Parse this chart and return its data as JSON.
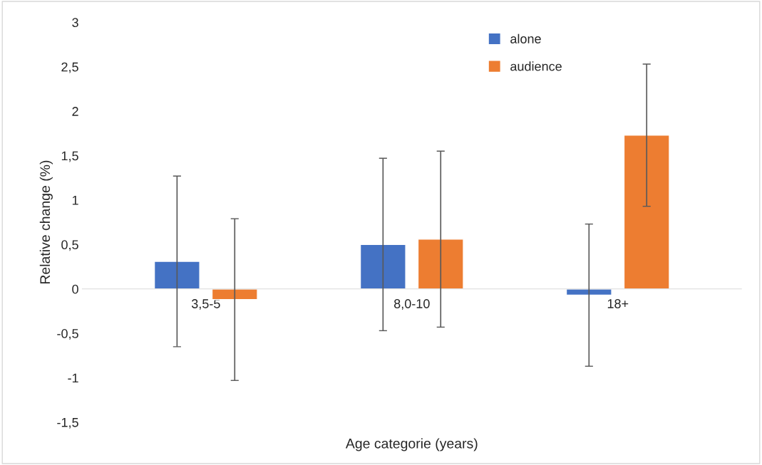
{
  "chart_data": {
    "type": "bar",
    "xlabel": "Age categorie (years)",
    "ylabel": "Relative change (%)",
    "categories": [
      "3,5-5",
      "8,0-10",
      "18+"
    ],
    "series": [
      {
        "name": "alone",
        "color": "#4472c4",
        "values": [
          0.31,
          0.5,
          -0.07
        ],
        "errors": [
          0.96,
          0.97,
          0.8
        ]
      },
      {
        "name": "audience",
        "color": "#ed7d31",
        "values": [
          -0.12,
          0.56,
          1.73
        ],
        "errors": [
          0.91,
          0.99,
          0.8
        ]
      }
    ],
    "ylim": [
      -1.5,
      3
    ],
    "yticks": [
      {
        "value": -1.5,
        "label": "-1,5"
      },
      {
        "value": -1,
        "label": "-1"
      },
      {
        "value": -0.5,
        "label": "-0,5"
      },
      0,
      {
        "value": 0.5,
        "label": "0,5"
      },
      1,
      {
        "value": 1.5,
        "label": "1,5"
      },
      2,
      {
        "value": 2.5,
        "label": "2,5"
      },
      3
    ],
    "grid": false,
    "legend": "top"
  }
}
